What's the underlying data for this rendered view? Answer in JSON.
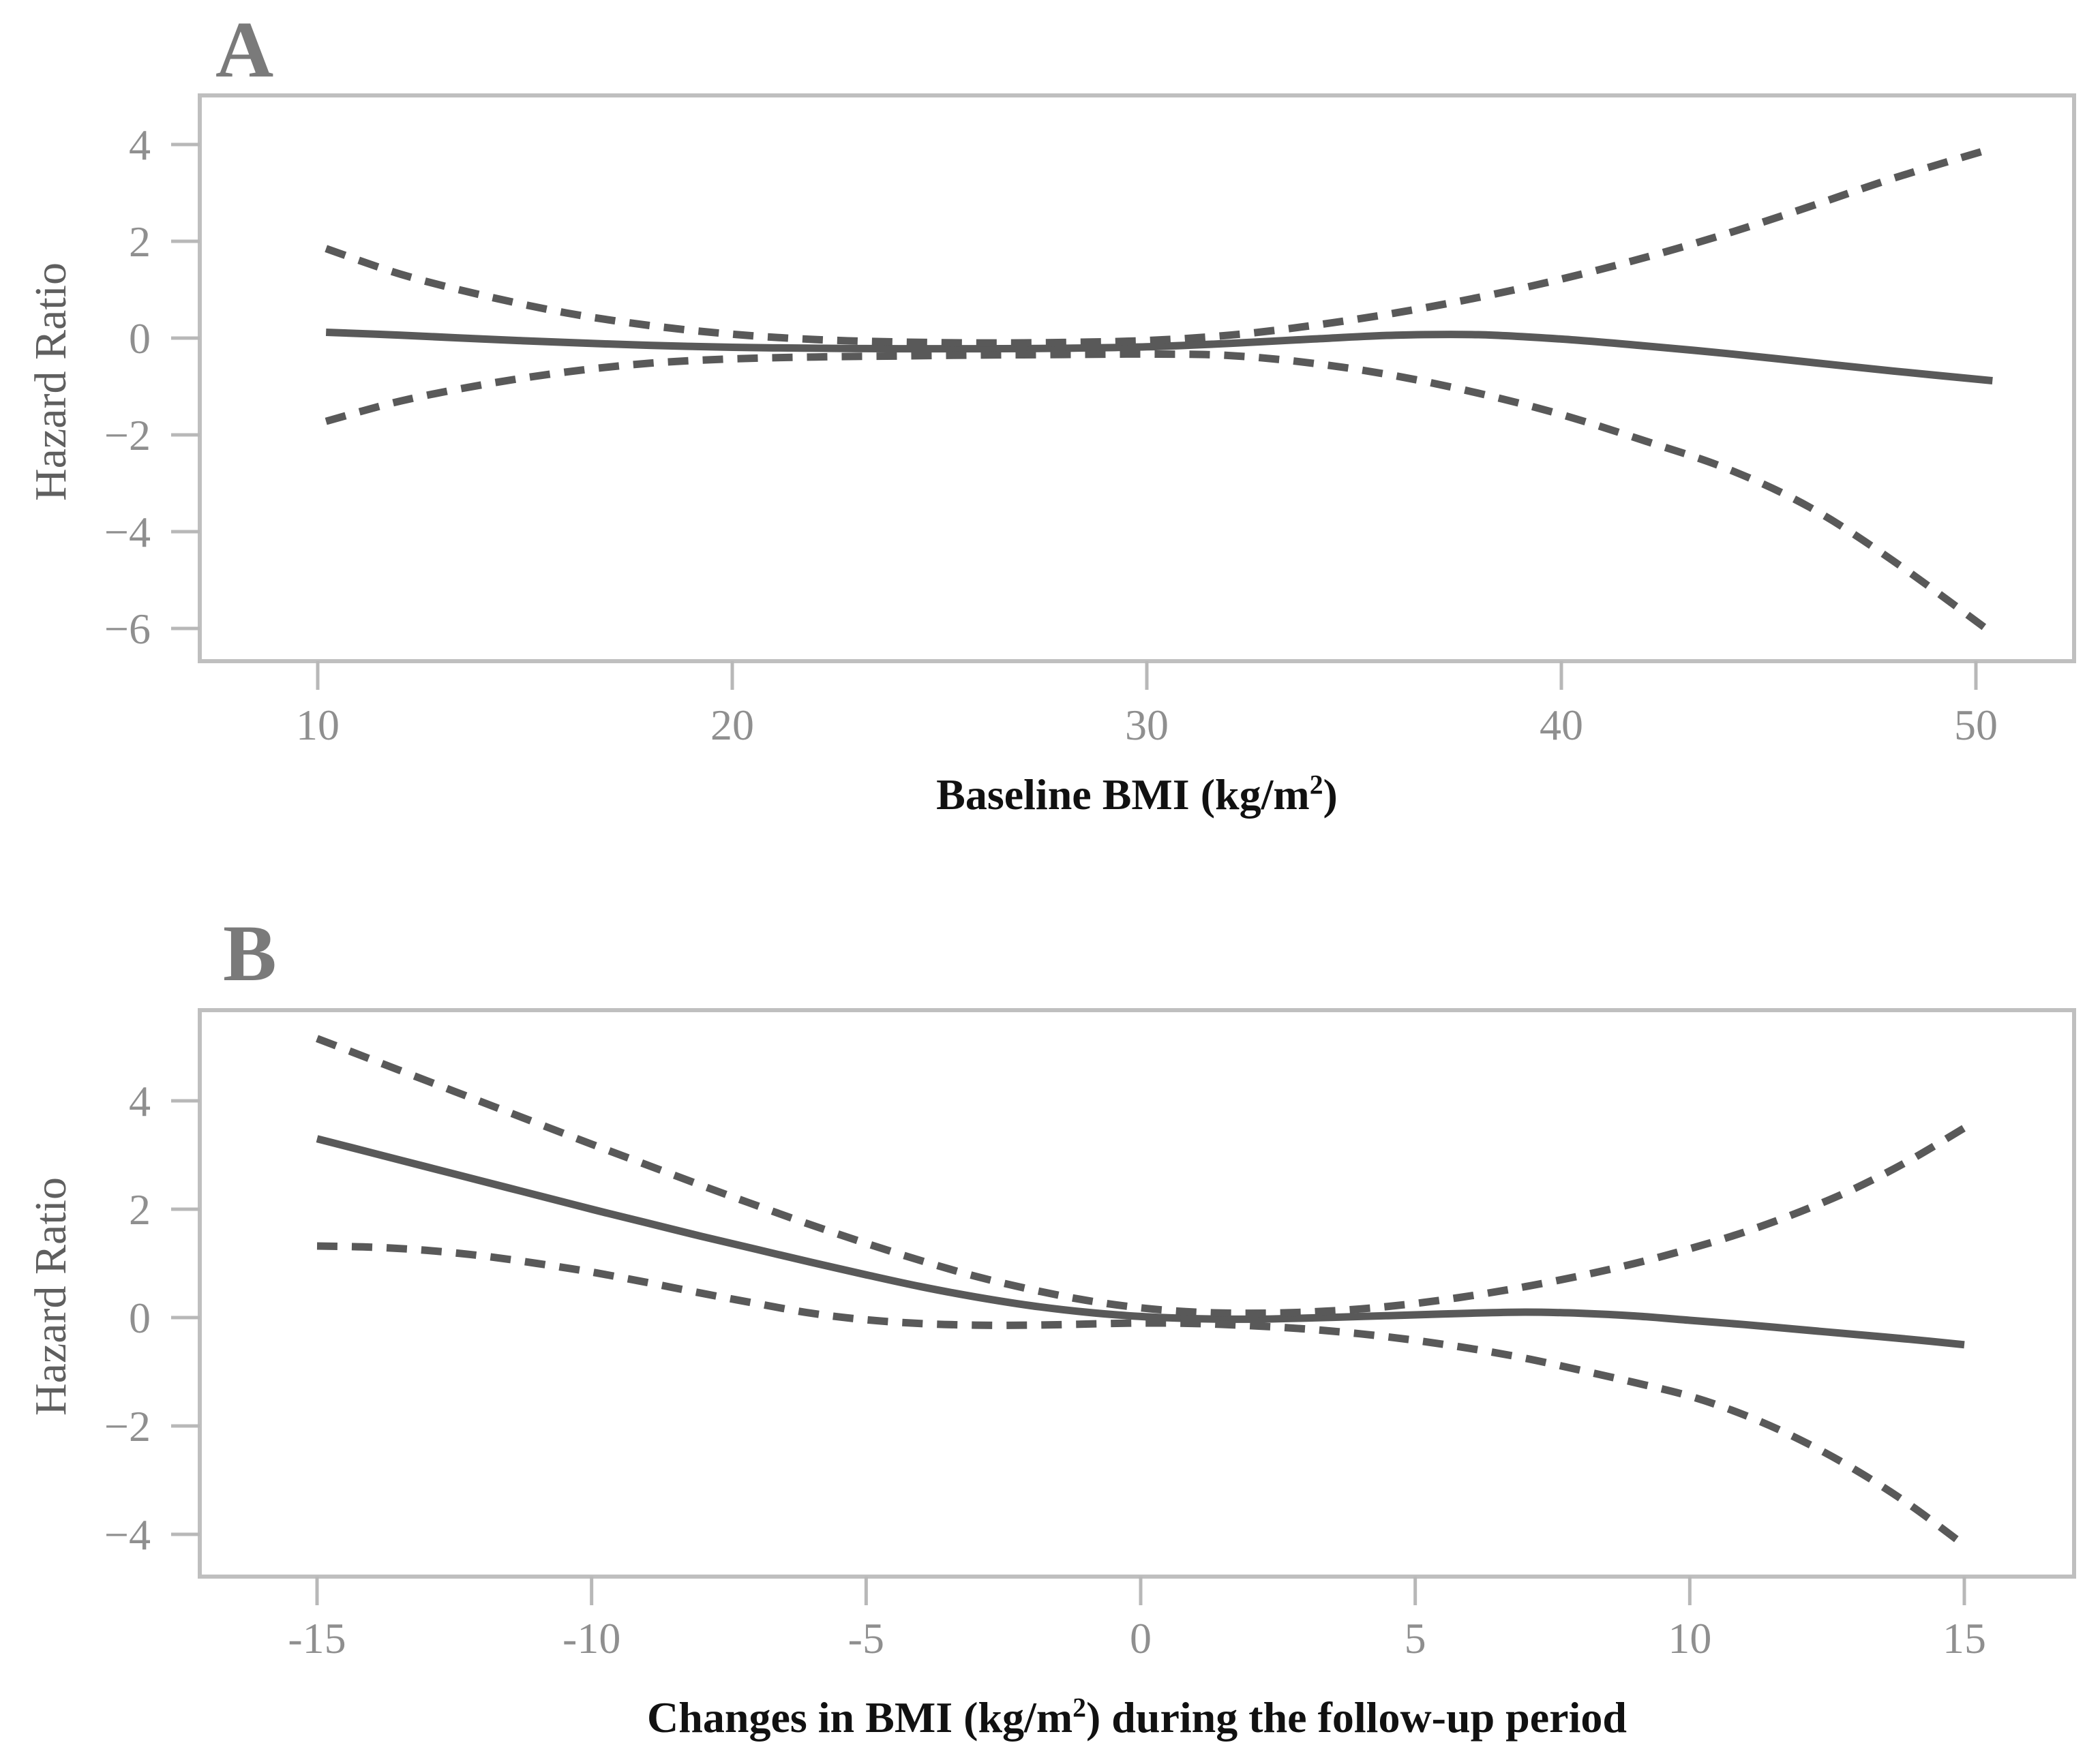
{
  "colors": {
    "curve": "#595959",
    "frame": "#bfbfbf",
    "tick": "#b8b8b8",
    "tick_label": "#8f8f8f",
    "panel_letter": "#7a7a7a",
    "ylabel_text": "#5f5f5f",
    "axis_title": "#111111",
    "background": "#ffffff"
  },
  "chart_data": [
    {
      "panel_label": "A",
      "type": "line",
      "ylabel": "Hazard Ratio",
      "xlabel_pre": "Baseline BMI (kg/m",
      "xlabel_sup": "2",
      "xlabel_post": ")",
      "grid": false,
      "legend": "none",
      "xlim": [
        7.2,
        52.4
      ],
      "ylim": [
        -6.6,
        5.0
      ],
      "x_ticks": [
        10,
        20,
        30,
        40,
        50
      ],
      "x_tick_labels": [
        "10",
        "20",
        "30",
        "40",
        "50"
      ],
      "y_ticks": [
        4,
        2,
        0,
        -2,
        -4,
        -6
      ],
      "y_tick_labels": [
        "4",
        "2",
        "0",
        "−2",
        "−4",
        "−6"
      ],
      "series": [
        {
          "name": "estimate",
          "style": "solid",
          "x": [
            10.2,
            12,
            14,
            16,
            18,
            20,
            22,
            24,
            26,
            28,
            30,
            32,
            34,
            36,
            38,
            40,
            42,
            44,
            46,
            48,
            50.4
          ],
          "y": [
            0.12,
            0.06,
            -0.02,
            -0.09,
            -0.15,
            -0.19,
            -0.21,
            -0.22,
            -0.22,
            -0.21,
            -0.18,
            -0.11,
            -0.02,
            0.06,
            0.07,
            -0.02,
            -0.16,
            -0.32,
            -0.5,
            -0.68,
            -0.88
          ]
        },
        {
          "name": "upper_95ci",
          "style": "dashed",
          "x": [
            10.2,
            12,
            14,
            16,
            18,
            20,
            22,
            24,
            26,
            28,
            30,
            32,
            34,
            36,
            38,
            40,
            42,
            44,
            46,
            48,
            50.4
          ],
          "y": [
            1.85,
            1.32,
            0.88,
            0.52,
            0.26,
            0.08,
            -0.03,
            -0.08,
            -0.1,
            -0.09,
            -0.05,
            0.06,
            0.26,
            0.52,
            0.84,
            1.22,
            1.66,
            2.16,
            2.72,
            3.3,
            3.92
          ]
        },
        {
          "name": "lower_95ci",
          "style": "dashed",
          "x": [
            10.2,
            12,
            14,
            16,
            18,
            20,
            22,
            24,
            26,
            28,
            30,
            32,
            34,
            36,
            38,
            40,
            42,
            44,
            46,
            48,
            50.4
          ],
          "y": [
            -1.72,
            -1.3,
            -0.96,
            -0.7,
            -0.52,
            -0.43,
            -0.39,
            -0.37,
            -0.35,
            -0.34,
            -0.33,
            -0.36,
            -0.52,
            -0.78,
            -1.14,
            -1.58,
            -2.12,
            -2.7,
            -3.5,
            -4.6,
            -6.1
          ]
        }
      ]
    },
    {
      "panel_label": "B",
      "type": "line",
      "ylabel": "Hazard Ratio",
      "xlabel_pre": "Changes in BMI (kg/m",
      "xlabel_sup": "2",
      "xlabel_post": ") during the follow-up period",
      "grid": false,
      "legend": "none",
      "xlim": [
        -17.1,
        17.0
      ],
      "ylim": [
        -4.8,
        5.7
      ],
      "x_ticks": [
        -15,
        -10,
        -5,
        0,
        5,
        10,
        15
      ],
      "x_tick_labels": [
        "-15",
        "-10",
        "-5",
        "0",
        "5",
        "10",
        "15"
      ],
      "y_ticks": [
        4,
        2,
        0,
        -2,
        -4
      ],
      "y_tick_labels": [
        "4",
        "2",
        "0",
        "−2",
        "−4"
      ],
      "series": [
        {
          "name": "estimate",
          "style": "solid",
          "x": [
            -15,
            -14,
            -13,
            -12,
            -11,
            -10,
            -9,
            -8,
            -7,
            -6,
            -5,
            -4,
            -3,
            -2,
            -1,
            0,
            1,
            2,
            3,
            4,
            5,
            6,
            7,
            8,
            9,
            10,
            11,
            12,
            13,
            14,
            15
          ],
          "y": [
            3.3,
            3.04,
            2.78,
            2.52,
            2.26,
            2.0,
            1.75,
            1.5,
            1.26,
            1.02,
            0.79,
            0.57,
            0.38,
            0.22,
            0.1,
            0.02,
            -0.02,
            -0.03,
            -0.01,
            0.02,
            0.05,
            0.08,
            0.1,
            0.08,
            0.03,
            -0.05,
            -0.13,
            -0.22,
            -0.31,
            -0.4,
            -0.5
          ]
        },
        {
          "name": "upper_95ci",
          "style": "dashed",
          "x": [
            -15,
            -14,
            -13,
            -12,
            -11,
            -10,
            -9,
            -8,
            -7,
            -6,
            -5,
            -4,
            -3,
            -2,
            -1,
            0,
            1,
            2,
            3,
            4,
            5,
            6,
            7,
            8,
            9,
            10,
            11,
            12,
            13,
            14,
            15
          ],
          "y": [
            5.15,
            4.76,
            4.37,
            3.98,
            3.59,
            3.2,
            2.82,
            2.44,
            2.07,
            1.71,
            1.37,
            1.05,
            0.76,
            0.52,
            0.32,
            0.18,
            0.1,
            0.08,
            0.1,
            0.16,
            0.26,
            0.4,
            0.57,
            0.77,
            1.0,
            1.27,
            1.58,
            1.95,
            2.38,
            2.9,
            3.5
          ]
        },
        {
          "name": "lower_95ci",
          "style": "dashed",
          "x": [
            -15,
            -14,
            -13,
            -12,
            -11,
            -10,
            -9,
            -8,
            -7,
            -6,
            -5,
            -4,
            -3,
            -2,
            -1,
            0,
            1,
            2,
            3,
            4,
            5,
            6,
            7,
            8,
            9,
            10,
            11,
            12,
            13,
            14,
            15
          ],
          "y": [
            1.32,
            1.3,
            1.24,
            1.14,
            1.0,
            0.84,
            0.65,
            0.45,
            0.26,
            0.08,
            -0.04,
            -0.11,
            -0.14,
            -0.14,
            -0.12,
            -0.1,
            -0.11,
            -0.15,
            -0.21,
            -0.3,
            -0.42,
            -0.57,
            -0.75,
            -0.97,
            -1.2,
            -1.45,
            -1.8,
            -2.25,
            -2.8,
            -3.45,
            -4.2
          ]
        }
      ]
    }
  ]
}
